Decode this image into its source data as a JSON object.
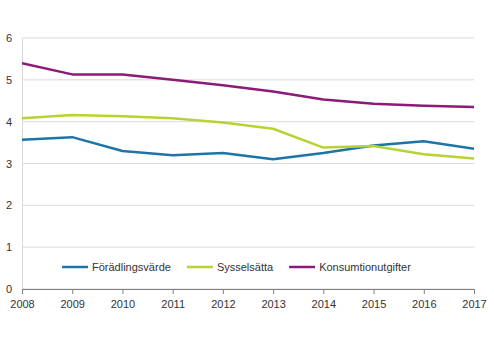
{
  "chart_data": {
    "type": "line",
    "x": [
      2008,
      2009,
      2010,
      2011,
      2012,
      2013,
      2014,
      2015,
      2016,
      2017
    ],
    "series": [
      {
        "name": "Förädlingsvärde",
        "color": "#1b75a8",
        "values": [
          3.57,
          3.63,
          3.3,
          3.2,
          3.25,
          3.1,
          3.25,
          3.43,
          3.53,
          3.35
        ]
      },
      {
        "name": "Sysselsätta",
        "color": "#b5d334",
        "values": [
          4.08,
          4.16,
          4.13,
          4.08,
          3.98,
          3.83,
          3.38,
          3.42,
          3.22,
          3.12
        ]
      },
      {
        "name": "Konsumtionutgifter",
        "color": "#8c1a78",
        "values": [
          5.4,
          5.13,
          5.13,
          5.0,
          4.87,
          4.72,
          4.53,
          4.43,
          4.38,
          4.35
        ]
      }
    ],
    "xlim": [
      2008,
      2017
    ],
    "xticks": [
      2008,
      2009,
      2010,
      2011,
      2012,
      2013,
      2014,
      2015,
      2016,
      2017
    ],
    "ylim": [
      0,
      6
    ],
    "yticks": [
      0,
      1,
      2,
      3,
      4,
      5,
      6
    ],
    "grid": true,
    "legend": "bottom"
  }
}
